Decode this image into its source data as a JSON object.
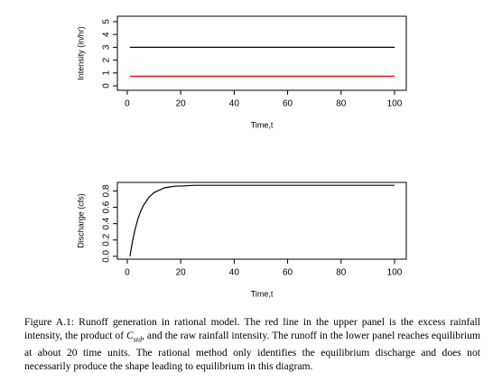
{
  "chart_data": [
    {
      "type": "line",
      "xlabel": "Time,t",
      "ylabel": "Intensity (in/hr)",
      "x": [
        1,
        100
      ],
      "series": [
        {
          "color": "#000000",
          "values": [
            3,
            3
          ]
        },
        {
          "color": "#e8000b",
          "values": [
            0.75,
            0.75
          ]
        }
      ],
      "xlim": [
        -3.7,
        104.4
      ],
      "xticks": [
        0,
        20,
        40,
        60,
        80,
        100
      ],
      "ylim": [
        -0.35,
        5.42
      ],
      "yticks": [
        0,
        1,
        2,
        3,
        4,
        5
      ]
    },
    {
      "type": "line",
      "xlabel": "Time,t",
      "ylabel": "Discharge (cfs)",
      "x": [
        1,
        2,
        3,
        4,
        5,
        6,
        8,
        10,
        12,
        14,
        16,
        18,
        20,
        25,
        30,
        40,
        60,
        80,
        100
      ],
      "series": [
        {
          "color": "#000000",
          "values": [
            0,
            0.19,
            0.34,
            0.46,
            0.55,
            0.62,
            0.72,
            0.78,
            0.81,
            0.84,
            0.85,
            0.86,
            0.86,
            0.87,
            0.87,
            0.87,
            0.87,
            0.87,
            0.87
          ]
        }
      ],
      "xlim": [
        -3.7,
        104.4
      ],
      "xticks": [
        0,
        20,
        40,
        60,
        80,
        100
      ],
      "ylim": [
        -0.035,
        0.905
      ],
      "yticks": [
        {
          "value": 0,
          "label": "0.0"
        },
        0.2,
        0.4,
        0.6,
        0.8
      ]
    }
  ],
  "caption": {
    "before": "Figure A.1: Runoff generation in rational model. The red line in the upper panel is the excess rainfall intensity, the product of ",
    "symbol": "C",
    "subscript": "std",
    "after": ", and the raw rainfall intensity. The runoff in the lower panel reaches equilibrium at about 20 time units. The rational method only identifies the equilibrium discharge and does not necessarily produce the shape leading to equilibrium in this diagram."
  }
}
